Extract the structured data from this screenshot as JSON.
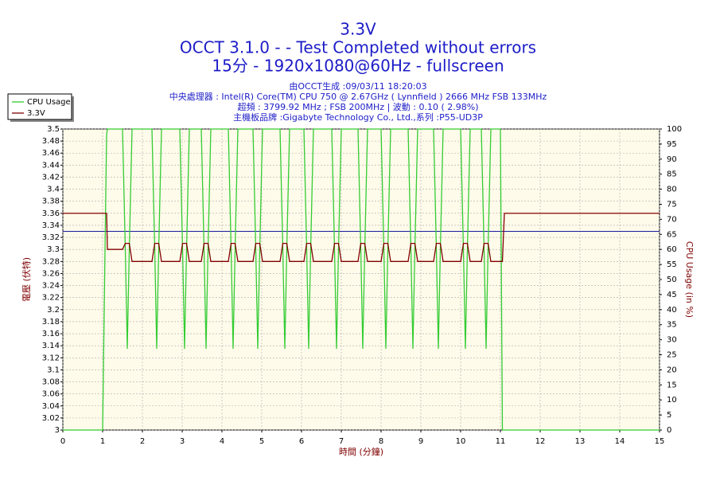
{
  "chart_data": {
    "type": "line",
    "title": "3.3V",
    "subtitle": [
      "OCCT 3.1.0 -  - Test Completed without errors",
      "15分 - 1920x1080@60Hz - fullscreen"
    ],
    "info": [
      "由OCCT生成 :09/03/11 18:20:03",
      "中央處理器 : Intel(R) Core(TM) CPU 750 @ 2.67GHz ( Lynnfield ) 2666 MHz FSB 133MHz",
      "超頻 : 3799.92 MHz ; FSB 200MHz | 波動 : 0.10 ( 2.98%)",
      "主機板品牌 :Gigabyte Technology Co., Ltd.,系列 :P55-UD3P"
    ],
    "xlabel": "時間 (分鐘)",
    "ylabel": "電壓 (伏特)",
    "y2label": "CPU Usage (in %)",
    "x": [
      0,
      1,
      1.05,
      1.1,
      1.12,
      1.5,
      1.57,
      1.62,
      1.67,
      1.74,
      2.24,
      2.31,
      2.36,
      2.41,
      2.48,
      2.94,
      3.01,
      3.06,
      3.11,
      3.18,
      3.48,
      3.55,
      3.6,
      3.65,
      3.72,
      4.16,
      4.23,
      4.28,
      4.33,
      4.4,
      4.78,
      4.85,
      4.9,
      4.95,
      5.02,
      5.46,
      5.53,
      5.58,
      5.63,
      5.7,
      6.06,
      6.13,
      6.18,
      6.23,
      6.3,
      6.76,
      6.83,
      6.88,
      6.93,
      7,
      7.42,
      7.49,
      7.54,
      7.59,
      7.66,
      8,
      8.07,
      8.12,
      8.17,
      8.24,
      8.68,
      8.75,
      8.8,
      8.85,
      8.92,
      9.32,
      9.39,
      9.44,
      9.49,
      9.56,
      10,
      10.07,
      10.12,
      10.17,
      10.24,
      10.52,
      10.59,
      10.64,
      10.69,
      10.76,
      11,
      11.05,
      11.1,
      15
    ],
    "series": [
      {
        "name": "CPU Usage",
        "color": "#33cc33",
        "axis": "y2",
        "values": [
          0,
          0,
          50,
          98,
          100,
          100,
          60,
          27,
          60,
          100,
          100,
          60,
          27,
          60,
          100,
          100,
          60,
          27,
          60,
          100,
          100,
          60,
          27,
          60,
          100,
          100,
          60,
          27,
          60,
          100,
          100,
          60,
          27,
          60,
          100,
          100,
          60,
          27,
          60,
          100,
          100,
          60,
          27,
          60,
          100,
          100,
          60,
          27,
          60,
          100,
          100,
          60,
          27,
          60,
          100,
          100,
          60,
          27,
          60,
          100,
          100,
          60,
          27,
          60,
          100,
          100,
          60,
          27,
          60,
          100,
          100,
          60,
          27,
          60,
          100,
          100,
          60,
          27,
          60,
          100,
          100,
          0,
          0,
          0
        ]
      },
      {
        "name": "3.3V",
        "color": "#800000",
        "values": [
          3.36,
          3.36,
          3.36,
          3.36,
          3.3,
          3.3,
          3.31,
          3.31,
          3.31,
          3.28,
          3.28,
          3.31,
          3.31,
          3.31,
          3.28,
          3.28,
          3.31,
          3.31,
          3.31,
          3.28,
          3.28,
          3.31,
          3.31,
          3.31,
          3.28,
          3.28,
          3.31,
          3.31,
          3.31,
          3.28,
          3.28,
          3.31,
          3.31,
          3.31,
          3.28,
          3.28,
          3.31,
          3.31,
          3.31,
          3.28,
          3.28,
          3.31,
          3.31,
          3.31,
          3.28,
          3.28,
          3.31,
          3.31,
          3.31,
          3.28,
          3.28,
          3.31,
          3.31,
          3.31,
          3.28,
          3.28,
          3.31,
          3.31,
          3.31,
          3.28,
          3.28,
          3.31,
          3.31,
          3.31,
          3.28,
          3.28,
          3.31,
          3.31,
          3.31,
          3.28,
          3.28,
          3.31,
          3.31,
          3.31,
          3.28,
          3.28,
          3.31,
          3.31,
          3.31,
          3.28,
          3.28,
          3.28,
          3.36,
          3.36
        ]
      }
    ],
    "reference_line": {
      "value": 3.33,
      "color": "#1a1aa0"
    },
    "xlim": [
      0,
      15
    ],
    "xticks": [
      0,
      1,
      2,
      3,
      4,
      5,
      6,
      7,
      8,
      9,
      10,
      11,
      12,
      13,
      14,
      15
    ],
    "ylim": [
      3,
      3.5
    ],
    "yticks": [
      3,
      3.02,
      3.04,
      3.06,
      3.08,
      3.1,
      3.12,
      3.14,
      3.16,
      3.18,
      3.2,
      3.22,
      3.24,
      3.26,
      3.28,
      3.3,
      3.32,
      3.34,
      3.36,
      3.38,
      3.4,
      3.42,
      3.44,
      3.46,
      3.48,
      3.5
    ],
    "y2lim": [
      0,
      100
    ],
    "y2ticks": [
      0,
      5,
      10,
      15,
      20,
      25,
      30,
      35,
      40,
      45,
      50,
      55,
      60,
      65,
      70,
      75,
      80,
      85,
      90,
      95,
      100
    ],
    "grid": true,
    "legend": "upper-left"
  }
}
